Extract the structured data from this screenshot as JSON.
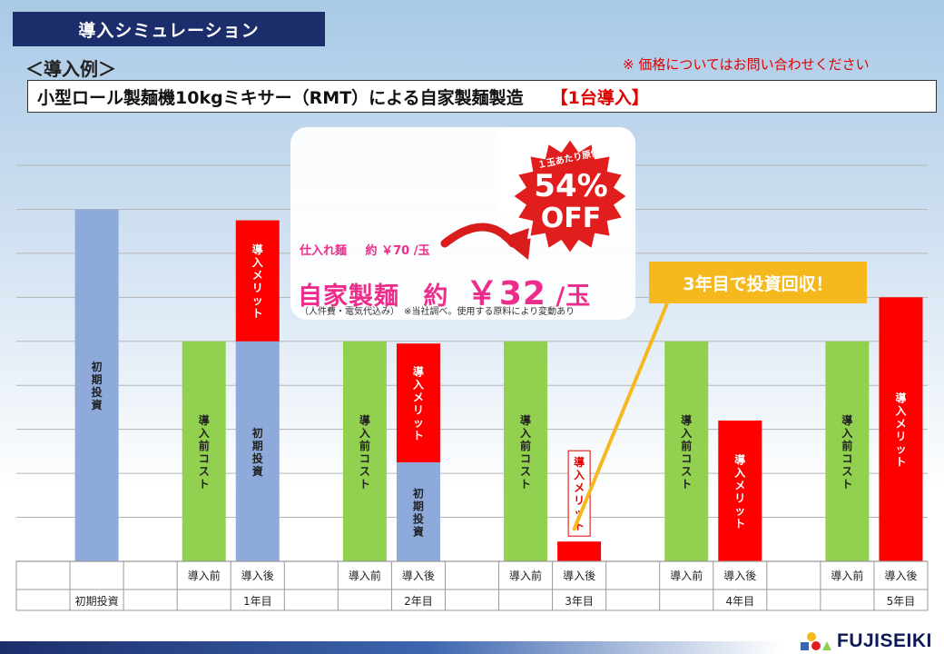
{
  "header": {
    "title": "導入シミュレーション",
    "subtitle": "＜導入例＞",
    "price_note": "※ 価格についてはお問い合わせください",
    "headline": "小型ロール製麺機10kgミキサー（RMT）による自家製麺製造",
    "headline_tag": "【1台導入】"
  },
  "promo": {
    "badge_caption": "１玉あたり原価",
    "badge_percent": "54%",
    "badge_off": "OFF",
    "supplier_label": "仕入れ麺",
    "supplier_price": "約 ￥70 /玉",
    "own_label": "自家製麺",
    "own_approx": "約",
    "own_price": "￥32",
    "own_unit": "/玉",
    "note": "（人件費・電気代込み）　※当社調べ。使用する原料により変動あり"
  },
  "callout": {
    "text": "3年目で投資回収！"
  },
  "logo": {
    "text": "FUJISEIKI"
  },
  "colors": {
    "cost": "#92d050",
    "merit": "#ff0000",
    "invest": "#8eaadb",
    "callout": "#f5b91e"
  },
  "chart_data": {
    "type": "bar",
    "groups": [
      "初期投資",
      "1年目",
      "2年目",
      "3年目",
      "4年目",
      "5年目"
    ],
    "bars": [
      {
        "group": "初期投資",
        "sub": "",
        "segments": [
          {
            "label": "初期投資",
            "kind": "invest",
            "value": 8
          }
        ]
      },
      {
        "group": "1年目",
        "sub": "導入前",
        "segments": [
          {
            "label": "導入前コスト",
            "kind": "cost",
            "value": 5
          }
        ]
      },
      {
        "group": "1年目",
        "sub": "導入後",
        "segments": [
          {
            "label": "初期投資",
            "kind": "invest",
            "value": 5
          },
          {
            "label": "導入メリット",
            "kind": "merit",
            "value": 2.75
          }
        ]
      },
      {
        "group": "2年目",
        "sub": "導入前",
        "segments": [
          {
            "label": "導入前コスト",
            "kind": "cost",
            "value": 5
          }
        ]
      },
      {
        "group": "2年目",
        "sub": "導入後",
        "segments": [
          {
            "label": "初期投資",
            "kind": "invest",
            "value": 2.25
          },
          {
            "label": "導入メリット",
            "kind": "merit",
            "value": 2.7
          }
        ]
      },
      {
        "group": "3年目",
        "sub": "導入前",
        "segments": [
          {
            "label": "導入前コスト",
            "kind": "cost",
            "value": 5
          }
        ]
      },
      {
        "group": "3年目",
        "sub": "導入後",
        "segments": [
          {
            "label": "導入メリット",
            "kind": "merit",
            "value": 0.45
          }
        ]
      },
      {
        "group": "4年目",
        "sub": "導入前",
        "segments": [
          {
            "label": "導入前コスト",
            "kind": "cost",
            "value": 5
          }
        ]
      },
      {
        "group": "4年目",
        "sub": "導入後",
        "segments": [
          {
            "label": "導入メリット",
            "kind": "merit",
            "value": 3.2
          }
        ]
      },
      {
        "group": "5年目",
        "sub": "導入前",
        "segments": [
          {
            "label": "導入前コスト",
            "kind": "cost",
            "value": 5
          }
        ]
      },
      {
        "group": "5年目",
        "sub": "導入後",
        "segments": [
          {
            "label": "導入メリット",
            "kind": "merit",
            "value": 6
          }
        ]
      }
    ],
    "ylim": [
      0,
      9
    ],
    "grid": true,
    "legend": "none"
  }
}
